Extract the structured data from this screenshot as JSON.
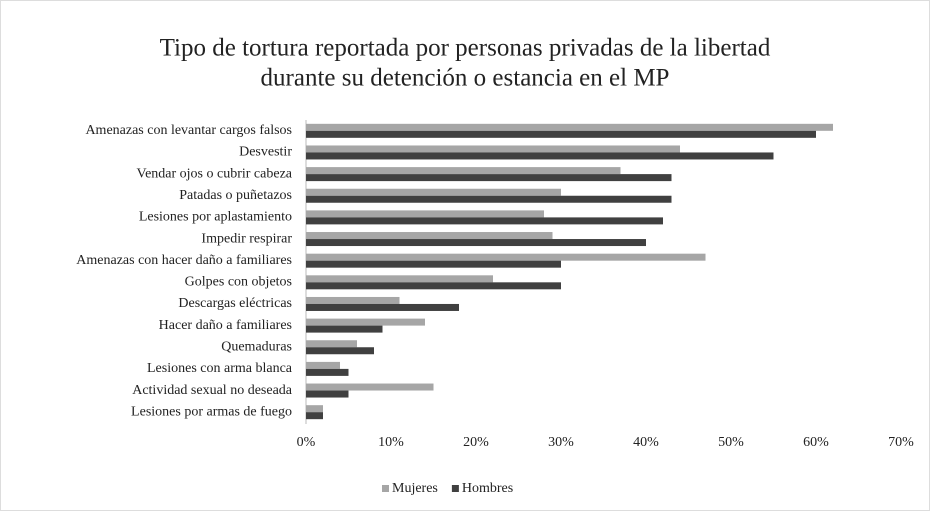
{
  "chart_data": {
    "type": "hbar",
    "title": [
      "Tipo de tortura reportada por personas privadas de la libertad",
      "durante su detención o estancia en el MP"
    ],
    "categories": [
      "Amenazas con levantar cargos falsos",
      "Desvestir",
      "Vendar ojos o cubrir cabeza",
      "Patadas o puñetazos",
      "Lesiones por aplastamiento",
      "Impedir respirar",
      "Amenazas con hacer daño a familiares",
      "Golpes con objetos",
      "Descargas eléctricas",
      "Hacer daño a familiares",
      "Quemaduras",
      "Lesiones con arma blanca",
      "Actividad sexual no deseada",
      "Lesiones por armas de fuego"
    ],
    "series": [
      {
        "name": "Mujeres",
        "color": "#a6a6a6",
        "values": [
          62,
          44,
          37,
          30,
          28,
          29,
          47,
          22,
          11,
          14,
          6,
          4,
          15,
          2
        ]
      },
      {
        "name": "Hombres",
        "color": "#404040",
        "values": [
          60,
          55,
          43,
          43,
          42,
          40,
          30,
          30,
          18,
          9,
          8,
          5,
          5,
          2
        ]
      }
    ],
    "xlim": [
      0,
      70
    ],
    "xticks": [
      {
        "value": 0,
        "label": "0%"
      },
      {
        "value": 10,
        "label": "10%"
      },
      {
        "value": 20,
        "label": "20%"
      },
      {
        "value": 30,
        "label": "30%"
      },
      {
        "value": 40,
        "label": "40%"
      },
      {
        "value": 50,
        "label": "50%"
      },
      {
        "value": 60,
        "label": "60%"
      },
      {
        "value": 70,
        "label": "70%"
      }
    ],
    "legend": "bottom"
  }
}
